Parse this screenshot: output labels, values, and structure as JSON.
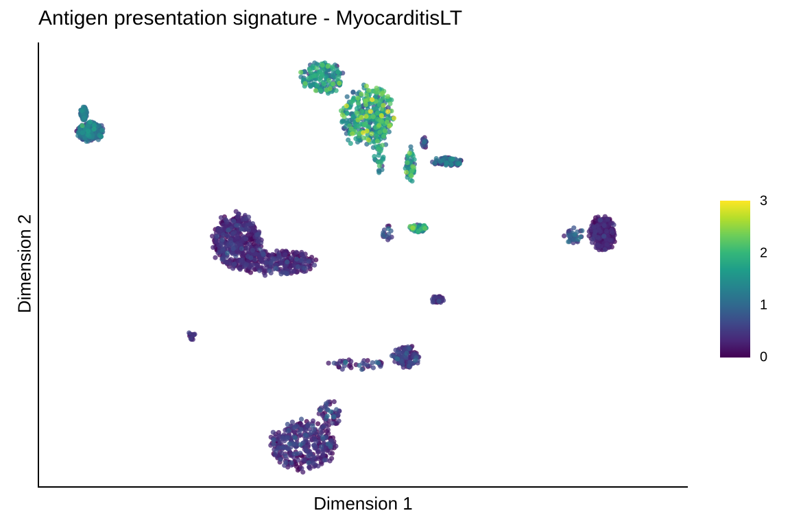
{
  "chart_data": {
    "type": "scatter",
    "title": "Antigen presentation signature - MyocarditisLT",
    "xlabel": "Dimension 1",
    "ylabel": "Dimension 2",
    "grid": false,
    "x_ticks_shown": false,
    "y_ticks_shown": false,
    "color_scale": {
      "palette": "viridis",
      "min": 0,
      "max": 3,
      "ticks": [
        "0",
        "1",
        "2",
        "3"
      ],
      "stops": [
        "#440154",
        "#482878",
        "#3e4989",
        "#31688e",
        "#26828e",
        "#1f9e89",
        "#35b779",
        "#6ece58",
        "#b5de2b",
        "#fde725"
      ]
    },
    "legend_position": "right",
    "point_opacity": 0.75,
    "clusters": [
      {
        "x": 6.4,
        "y": 7.6,
        "rx": 1.5,
        "ry": 0.35,
        "n": 260,
        "score_mean": 0.8,
        "score_sd": 0.4
      },
      {
        "x": 5.6,
        "y": 8.3,
        "rx": 0.4,
        "ry": 0.25,
        "n": 60,
        "score_mean": 0.9,
        "score_sd": 0.3
      },
      {
        "x": 35.0,
        "y": 9.6,
        "rx": 2.5,
        "ry": 0.6,
        "n": 160,
        "score_mean": 1.4,
        "score_sd": 0.5
      },
      {
        "x": 40.5,
        "y": 8.2,
        "rx": 3.2,
        "ry": 1.1,
        "n": 320,
        "score_mean": 1.5,
        "score_sd": 0.55
      },
      {
        "x": 42.0,
        "y": 7.4,
        "rx": 0.8,
        "ry": 1.4,
        "n": 80,
        "score_mean": 1.4,
        "score_sd": 0.5
      },
      {
        "x": 45.8,
        "y": 6.3,
        "rx": 0.6,
        "ry": 0.6,
        "n": 50,
        "score_mean": 1.5,
        "score_sd": 0.5
      },
      {
        "x": 50.5,
        "y": 6.45,
        "rx": 1.8,
        "ry": 0.15,
        "n": 90,
        "score_mean": 0.8,
        "score_sd": 0.4
      },
      {
        "x": 47.5,
        "y": 7.2,
        "rx": 0.3,
        "ry": 0.2,
        "n": 15,
        "score_mean": 0.5,
        "score_sd": 0.3
      },
      {
        "x": 24.5,
        "y": 3.4,
        "rx": 2.8,
        "ry": 1.0,
        "n": 450,
        "score_mean": 0.25,
        "score_sd": 0.2
      },
      {
        "x": 29.5,
        "y": 2.6,
        "rx": 4.5,
        "ry": 0.45,
        "n": 250,
        "score_mean": 0.25,
        "score_sd": 0.2
      },
      {
        "x": 46.8,
        "y": 3.9,
        "rx": 1.0,
        "ry": 0.15,
        "n": 60,
        "score_mean": 1.3,
        "score_sd": 0.5
      },
      {
        "x": 43.0,
        "y": 3.7,
        "rx": 0.7,
        "ry": 0.3,
        "n": 15,
        "score_mean": 0.6,
        "score_sd": 0.3
      },
      {
        "x": 69.5,
        "y": 3.7,
        "rx": 1.5,
        "ry": 0.65,
        "n": 260,
        "score_mean": 0.2,
        "score_sd": 0.15
      },
      {
        "x": 66.0,
        "y": 3.6,
        "rx": 1.2,
        "ry": 0.3,
        "n": 35,
        "score_mean": 0.6,
        "score_sd": 0.3
      },
      {
        "x": 49.2,
        "y": 1.2,
        "rx": 0.8,
        "ry": 0.15,
        "n": 40,
        "score_mean": 0.3,
        "score_sd": 0.2
      },
      {
        "x": 18.8,
        "y": -0.2,
        "rx": 0.5,
        "ry": 0.15,
        "n": 15,
        "score_mean": 0.3,
        "score_sd": 0.2
      },
      {
        "x": 45.2,
        "y": -1.0,
        "rx": 1.6,
        "ry": 0.4,
        "n": 120,
        "score_mean": 0.4,
        "score_sd": 0.25
      },
      {
        "x": 39.5,
        "y": -1.3,
        "rx": 3.5,
        "ry": 0.2,
        "n": 40,
        "score_mean": 0.4,
        "score_sd": 0.3
      },
      {
        "x": 32.6,
        "y": -4.4,
        "rx": 4.0,
        "ry": 0.9,
        "n": 340,
        "score_mean": 0.3,
        "score_sd": 0.25
      },
      {
        "x": 36.0,
        "y": -3.2,
        "rx": 1.5,
        "ry": 0.5,
        "n": 50,
        "score_mean": 0.4,
        "score_sd": 0.3
      }
    ]
  }
}
